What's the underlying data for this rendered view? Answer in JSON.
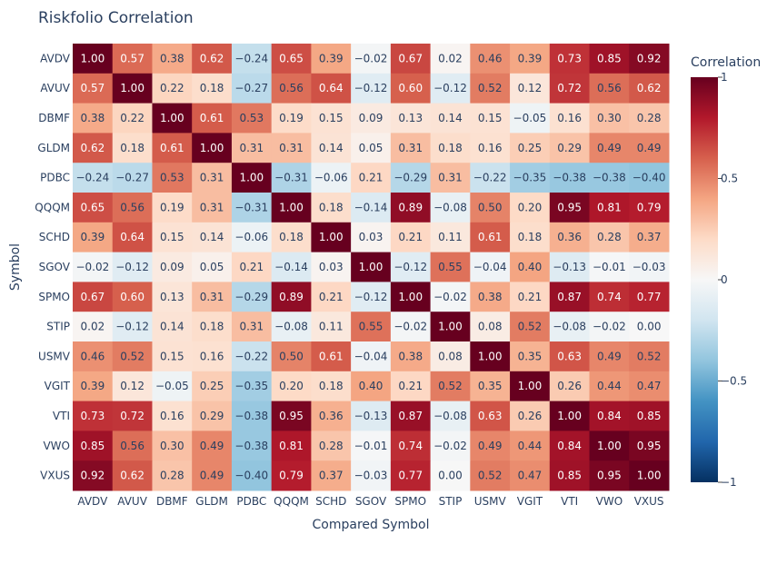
{
  "chart_data": {
    "type": "heatmap",
    "title": "Riskfolio Correlation",
    "xlabel": "Compared Symbol",
    "ylabel": "Symbol",
    "x": [
      "AVDV",
      "AVUV",
      "DBMF",
      "GLDM",
      "PDBC",
      "QQQM",
      "SCHD",
      "SGOV",
      "SPMO",
      "STIP",
      "USMV",
      "VGIT",
      "VTI",
      "VWO",
      "VXUS"
    ],
    "y": [
      "AVDV",
      "AVUV",
      "DBMF",
      "GLDM",
      "PDBC",
      "QQQM",
      "SCHD",
      "SGOV",
      "SPMO",
      "STIP",
      "USMV",
      "VGIT",
      "VTI",
      "VWO",
      "VXUS"
    ],
    "z": [
      [
        1.0,
        0.57,
        0.38,
        0.62,
        -0.24,
        0.65,
        0.39,
        -0.02,
        0.67,
        0.02,
        0.46,
        0.39,
        0.73,
        0.85,
        0.92
      ],
      [
        0.57,
        1.0,
        0.22,
        0.18,
        -0.27,
        0.56,
        0.64,
        -0.12,
        0.6,
        -0.12,
        0.52,
        0.12,
        0.72,
        0.56,
        0.62
      ],
      [
        0.38,
        0.22,
        1.0,
        0.61,
        0.53,
        0.19,
        0.15,
        0.09,
        0.13,
        0.14,
        0.15,
        -0.05,
        0.16,
        0.3,
        0.28
      ],
      [
        0.62,
        0.18,
        0.61,
        1.0,
        0.31,
        0.31,
        0.14,
        0.05,
        0.31,
        0.18,
        0.16,
        0.25,
        0.29,
        0.49,
        0.49
      ],
      [
        -0.24,
        -0.27,
        0.53,
        0.31,
        1.0,
        -0.31,
        -0.06,
        0.21,
        -0.29,
        0.31,
        -0.22,
        -0.35,
        -0.38,
        -0.38,
        -0.4
      ],
      [
        0.65,
        0.56,
        0.19,
        0.31,
        -0.31,
        1.0,
        0.18,
        -0.14,
        0.89,
        -0.08,
        0.5,
        0.2,
        0.95,
        0.81,
        0.79
      ],
      [
        0.39,
        0.64,
        0.15,
        0.14,
        -0.06,
        0.18,
        1.0,
        0.03,
        0.21,
        0.11,
        0.61,
        0.18,
        0.36,
        0.28,
        0.37
      ],
      [
        -0.02,
        -0.12,
        0.09,
        0.05,
        0.21,
        -0.14,
        0.03,
        1.0,
        -0.12,
        0.55,
        -0.04,
        0.4,
        -0.13,
        -0.01,
        -0.03
      ],
      [
        0.67,
        0.6,
        0.13,
        0.31,
        -0.29,
        0.89,
        0.21,
        -0.12,
        1.0,
        -0.02,
        0.38,
        0.21,
        0.87,
        0.74,
        0.77
      ],
      [
        0.02,
        -0.12,
        0.14,
        0.18,
        0.31,
        -0.08,
        0.11,
        0.55,
        -0.02,
        1.0,
        0.08,
        0.52,
        -0.08,
        -0.02,
        0.0
      ],
      [
        0.46,
        0.52,
        0.15,
        0.16,
        -0.22,
        0.5,
        0.61,
        -0.04,
        0.38,
        0.08,
        1.0,
        0.35,
        0.63,
        0.49,
        0.52
      ],
      [
        0.39,
        0.12,
        -0.05,
        0.25,
        -0.35,
        0.2,
        0.18,
        0.4,
        0.21,
        0.52,
        0.35,
        1.0,
        0.26,
        0.44,
        0.47
      ],
      [
        0.73,
        0.72,
        0.16,
        0.29,
        -0.38,
        0.95,
        0.36,
        -0.13,
        0.87,
        -0.08,
        0.63,
        0.26,
        1.0,
        0.84,
        0.85
      ],
      [
        0.85,
        0.56,
        0.3,
        0.49,
        -0.38,
        0.81,
        0.28,
        -0.01,
        0.74,
        -0.02,
        0.49,
        0.44,
        0.84,
        1.0,
        0.95
      ],
      [
        0.92,
        0.62,
        0.28,
        0.49,
        -0.4,
        0.79,
        0.37,
        -0.03,
        0.77,
        0.0,
        0.52,
        0.47,
        0.85,
        0.95,
        1.0
      ]
    ],
    "zmin": -1,
    "zmax": 1,
    "colorscale": "RdBu (reversed)",
    "colorscale_stops": [
      "#053061",
      "#2166ac",
      "#4393c3",
      "#92c5de",
      "#d1e5f0",
      "#f7f7f7",
      "#fddbc7",
      "#f4a582",
      "#d6604d",
      "#b2182b",
      "#67001f"
    ],
    "colorbar": {
      "title": "Correlation",
      "ticks": [
        1,
        0.5,
        0,
        -0.5,
        -1
      ],
      "tick_labels": [
        "1",
        "0.5",
        "0",
        "−0.5",
        "−1"
      ]
    },
    "text_format": "2 decimals",
    "grid": false
  }
}
